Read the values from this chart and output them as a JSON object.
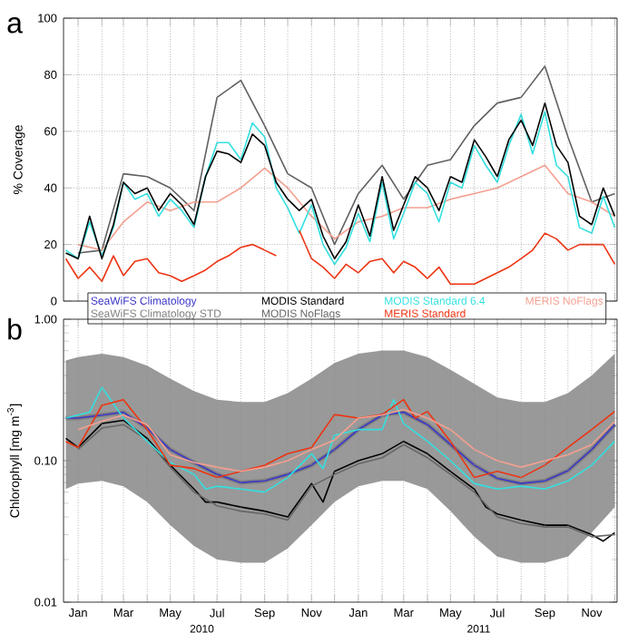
{
  "chart_data": [
    {
      "type": "line",
      "title": "a",
      "ylabel": "% Coverage",
      "xlim": [
        "2009-12-13",
        "2011-12-04"
      ],
      "ylim": [
        0,
        100
      ],
      "yticks": [
        0,
        20,
        40,
        60,
        80,
        100
      ],
      "grid": true,
      "tick_labels": "y",
      "xticks": [
        {
          "value": "2010-01-01",
          "label": null
        },
        {
          "value": "2010-02-01",
          "label": null
        },
        {
          "value": "2010-03-01",
          "label": null
        },
        {
          "value": "2010-04-01",
          "label": null
        },
        {
          "value": "2010-05-01",
          "label": null
        },
        {
          "value": "2010-06-01",
          "label": null
        },
        {
          "value": "2010-07-01",
          "label": null
        },
        {
          "value": "2010-08-01",
          "label": null
        },
        {
          "value": "2010-09-01",
          "label": null
        },
        {
          "value": "2010-10-01",
          "label": null
        },
        {
          "value": "2010-11-01",
          "label": null
        },
        {
          "value": "2010-12-01",
          "label": null
        },
        {
          "value": "2011-01-01",
          "label": null
        },
        {
          "value": "2011-02-01",
          "label": null
        },
        {
          "value": "2011-03-01",
          "label": null
        },
        {
          "value": "2011-04-01",
          "label": null
        },
        {
          "value": "2011-05-01",
          "label": null
        },
        {
          "value": "2011-06-01",
          "label": null
        },
        {
          "value": "2011-07-01",
          "label": null
        },
        {
          "value": "2011-08-01",
          "label": null
        },
        {
          "value": "2011-09-01",
          "label": null
        },
        {
          "value": "2011-10-01",
          "label": null
        },
        {
          "value": "2011-11-01",
          "label": null
        },
        {
          "value": "2011-12-01",
          "label": null
        }
      ],
      "series": [
        {
          "color": "#606060",
          "x": [
            "2010-01-01",
            "2010-02-01",
            "2010-03-01",
            "2010-04-01",
            "2010-05-01",
            "2010-06-01",
            "2010-07-01",
            "2010-08-01",
            "2010-09-01",
            "2010-10-01",
            "2010-11-01",
            "2010-12-01",
            "2011-01-01",
            "2011-02-01",
            "2011-03-01",
            "2011-04-01",
            "2011-05-01",
            "2011-06-01",
            "2011-07-01",
            "2011-08-01",
            "2011-09-01",
            "2011-10-01",
            "2011-11-01",
            "2011-12-01"
          ],
          "values": [
            17,
            18,
            45,
            44,
            40,
            32,
            72,
            78,
            62,
            45,
            40,
            20,
            38,
            48,
            36,
            48,
            50,
            62,
            70,
            72,
            83,
            58,
            35,
            38
          ]
        },
        {
          "color": "#f4a090",
          "x": [
            "2010-01-01",
            "2010-02-01",
            "2010-03-01",
            "2010-04-01",
            "2010-05-01",
            "2010-06-01",
            "2010-07-01",
            "2010-08-01",
            "2010-09-01",
            "2010-10-01",
            "2010-11-01",
            "2010-12-01",
            "2011-01-01",
            "2011-02-01",
            "2011-03-01",
            "2011-04-01",
            "2011-05-01",
            "2011-06-01",
            "2011-07-01",
            "2011-08-01",
            "2011-09-01",
            "2011-10-01",
            "2011-11-01",
            "2011-12-01"
          ],
          "values": [
            20,
            18,
            28,
            35,
            32,
            35,
            35,
            40,
            47,
            40,
            30,
            22,
            28,
            30,
            33,
            33,
            36,
            38,
            40,
            44,
            48,
            38,
            35,
            30
          ]
        },
        {
          "color": "#33e0e0",
          "x": [
            "2009-12-16",
            "2010-01-01",
            "2010-01-16",
            "2010-02-01",
            "2010-02-16",
            "2010-03-01",
            "2010-03-16",
            "2010-04-01",
            "2010-04-16",
            "2010-05-01",
            "2010-05-16",
            "2010-06-01",
            "2010-06-16",
            "2010-07-01",
            "2010-07-16",
            "2010-08-01",
            "2010-08-16",
            "2010-09-01",
            "2010-09-16",
            "2010-10-01",
            "2010-10-16",
            "2010-11-01",
            "2010-11-16",
            "2010-12-01",
            "2010-12-16",
            "2011-01-01",
            "2011-01-16",
            "2011-02-01",
            "2011-02-16",
            "2011-03-01",
            "2011-03-16",
            "2011-04-01",
            "2011-04-16",
            "2011-05-01",
            "2011-05-16",
            "2011-06-01",
            "2011-06-16",
            "2011-07-01",
            "2011-07-16",
            "2011-08-01",
            "2011-08-16",
            "2011-09-01",
            "2011-09-16",
            "2011-10-01",
            "2011-10-16",
            "2011-11-01",
            "2011-11-16",
            "2011-12-01"
          ],
          "values": [
            18,
            15,
            28,
            16,
            26,
            42,
            36,
            38,
            30,
            36,
            32,
            26,
            44,
            56,
            56,
            50,
            63,
            58,
            40,
            33,
            24,
            34,
            20,
            13,
            19,
            31,
            21,
            42,
            22,
            31,
            42,
            38,
            28,
            42,
            40,
            55,
            48,
            42,
            55,
            66,
            52,
            67,
            48,
            44,
            26,
            24,
            37,
            26
          ]
        },
        {
          "color": "#000000",
          "x": [
            "2009-12-16",
            "2010-01-01",
            "2010-01-16",
            "2010-02-01",
            "2010-02-16",
            "2010-03-01",
            "2010-03-16",
            "2010-04-01",
            "2010-04-16",
            "2010-05-01",
            "2010-05-16",
            "2010-06-01",
            "2010-06-16",
            "2010-07-01",
            "2010-07-16",
            "2010-08-01",
            "2010-08-16",
            "2010-09-01",
            "2010-09-16",
            "2010-10-01",
            "2010-10-16",
            "2010-11-01",
            "2010-11-16",
            "2010-12-01",
            "2010-12-16",
            "2011-01-01",
            "2011-01-16",
            "2011-02-01",
            "2011-02-16",
            "2011-03-01",
            "2011-03-16",
            "2011-04-01",
            "2011-04-16",
            "2011-05-01",
            "2011-05-16",
            "2011-06-01",
            "2011-06-16",
            "2011-07-01",
            "2011-07-16",
            "2011-08-01",
            "2011-08-16",
            "2011-09-01",
            "2011-09-16",
            "2011-10-01",
            "2011-10-16",
            "2011-11-01",
            "2011-11-16",
            "2011-12-01"
          ],
          "values": [
            17,
            15,
            30,
            15,
            27,
            42,
            38,
            40,
            32,
            38,
            34,
            27,
            44,
            53,
            52,
            49,
            59,
            55,
            42,
            36,
            32,
            36,
            23,
            15,
            21,
            34,
            23,
            44,
            25,
            34,
            44,
            40,
            32,
            44,
            42,
            57,
            51,
            44,
            57,
            64,
            55,
            70,
            55,
            49,
            30,
            27,
            40,
            30
          ]
        },
        {
          "color": "#ee3311",
          "x": [
            "2009-12-16",
            "2010-01-01",
            "2010-01-16",
            "2010-02-01",
            "2010-02-16",
            "2010-03-01",
            "2010-03-16",
            "2010-04-01",
            "2010-04-16",
            "2010-05-01",
            "2010-05-16",
            "2010-06-01",
            "2010-06-16",
            "2010-07-01",
            "2010-07-16",
            "2010-08-01",
            "2010-08-16",
            "2010-09-01",
            "2010-09-16",
            "2010-10-01",
            "2010-10-16",
            "2010-11-01",
            "2010-11-16",
            "2010-12-01",
            "2010-12-16",
            "2011-01-01",
            "2011-01-16",
            "2011-02-01",
            "2011-02-16",
            "2011-03-01",
            "2011-03-16",
            "2011-04-01",
            "2011-04-16",
            "2011-05-01",
            "2011-05-16",
            "2011-06-01",
            "2011-06-16",
            "2011-07-01",
            "2011-07-16",
            "2011-08-01",
            "2011-08-16",
            "2011-09-01",
            "2011-09-16",
            "2011-10-01",
            "2011-10-16",
            "2011-11-01",
            "2011-11-16",
            "2011-12-01"
          ],
          "values": [
            15,
            8,
            12,
            7,
            16,
            9,
            14,
            15,
            10,
            9,
            7,
            9,
            11,
            14,
            16,
            19,
            20,
            18,
            16,
            null,
            25,
            15,
            12,
            8,
            13,
            10,
            14,
            15,
            10,
            14,
            12,
            8,
            12,
            6,
            6,
            6,
            8,
            10,
            12,
            15,
            18,
            24,
            22,
            18,
            20,
            20,
            20,
            13
          ]
        }
      ]
    },
    {
      "type": "line",
      "title": "b",
      "ylabel": "Chlorophyll [mg m$^{-3}$]",
      "log": "y",
      "xlim": [
        "2009-12-13",
        "2011-12-04"
      ],
      "ylim": [
        0.01,
        1
      ],
      "yticks": [
        0.01,
        {
          "value": 0.1,
          "label": "0.10"
        },
        {
          "value": 1,
          "label": "1.00"
        }
      ],
      "grid": "x",
      "legend": "top",
      "xticks": [
        {
          "value": "2010-01-01",
          "label": "Jan"
        },
        {
          "value": "2010-02-01",
          "label": null
        },
        {
          "value": "2010-03-01",
          "label": "Mar"
        },
        {
          "value": "2010-04-01",
          "label": null
        },
        {
          "value": "2010-05-01",
          "label": "May"
        },
        {
          "value": "2010-06-01",
          "label": null
        },
        {
          "value": "2010-07-01",
          "label": "Jul"
        },
        {
          "value": "2010-08-01",
          "label": null
        },
        {
          "value": "2010-09-01",
          "label": "Sep"
        },
        {
          "value": "2010-10-01",
          "label": null
        },
        {
          "value": "2010-11-01",
          "label": "Nov"
        },
        {
          "value": "2010-12-01",
          "label": null
        },
        {
          "value": "2011-01-01",
          "label": "Jan"
        },
        {
          "value": "2011-02-01",
          "label": null
        },
        {
          "value": "2011-03-01",
          "label": "Mar"
        },
        {
          "value": "2011-04-01",
          "label": null
        },
        {
          "value": "2011-05-01",
          "label": "May"
        },
        {
          "value": "2011-06-01",
          "label": null
        },
        {
          "value": "2011-07-01",
          "label": "Jul"
        },
        {
          "value": "2011-08-01",
          "label": null
        },
        {
          "value": "2011-09-01",
          "label": "Sep"
        },
        {
          "value": "2011-10-01",
          "label": null
        },
        {
          "value": "2011-11-01",
          "label": "Nov"
        },
        {
          "value": "2011-12-01",
          "label": null
        }
      ],
      "annotations": [
        "2010",
        "2011"
      ],
      "series": [
        {
          "name": "SeaWiFS Climatology",
          "color": "#3a35c8",
          "x": [
            "2009-12-16",
            "2010-01-01",
            "2010-02-01",
            "2010-03-01",
            "2010-04-01",
            "2010-05-01",
            "2010-06-01",
            "2010-07-01",
            "2010-08-01",
            "2010-09-01",
            "2010-10-01",
            "2010-11-01",
            "2010-12-01",
            "2011-01-01",
            "2011-02-01",
            "2011-03-01",
            "2011-04-01",
            "2011-05-01",
            "2011-06-01",
            "2011-07-01",
            "2011-08-01",
            "2011-09-01",
            "2011-10-01",
            "2011-11-01",
            "2011-12-01"
          ],
          "values": [
            0.2,
            0.2,
            0.21,
            0.22,
            0.17,
            0.12,
            0.097,
            0.08,
            0.07,
            0.072,
            0.08,
            0.093,
            0.12,
            0.166,
            0.21,
            0.22,
            0.18,
            0.13,
            0.093,
            0.075,
            0.069,
            0.072,
            0.085,
            0.12,
            0.18
          ]
        },
        {
          "name": "SeaWiFS Climatology STD",
          "color": "#808080",
          "x": [
            "2009-12-16",
            "2010-01-01",
            "2010-02-01",
            "2010-03-01",
            "2010-04-01",
            "2010-05-01",
            "2010-06-01",
            "2010-07-01",
            "2010-08-01",
            "2010-09-01",
            "2010-10-01",
            "2010-11-01",
            "2010-12-01",
            "2011-01-01",
            "2011-02-01",
            "2011-03-01",
            "2011-04-01",
            "2011-05-01",
            "2011-06-01",
            "2011-07-01",
            "2011-08-01",
            "2011-09-01",
            "2011-10-01",
            "2011-11-01",
            "2011-12-01"
          ],
          "values": [
            0.2,
            0.2,
            0.21,
            0.22,
            0.17,
            0.12,
            0.097,
            0.08,
            0.07,
            0.072,
            0.08,
            0.093,
            0.12,
            0.166,
            0.21,
            0.22,
            0.18,
            0.13,
            0.093,
            0.075,
            0.069,
            0.072,
            0.085,
            0.12,
            0.18
          ],
          "lower": [
            0.063,
            0.069,
            0.072,
            0.066,
            0.051,
            0.035,
            0.025,
            0.02,
            0.019,
            0.019,
            0.024,
            0.035,
            0.051,
            0.066,
            0.072,
            0.072,
            0.063,
            0.044,
            0.029,
            0.021,
            0.019,
            0.019,
            0.021,
            0.031,
            0.047
          ],
          "upper": [
            0.51,
            0.54,
            0.57,
            0.54,
            0.47,
            0.38,
            0.31,
            0.27,
            0.26,
            0.26,
            0.3,
            0.38,
            0.49,
            0.57,
            0.6,
            0.6,
            0.54,
            0.44,
            0.35,
            0.28,
            0.26,
            0.26,
            0.3,
            0.4,
            0.57
          ]
        },
        {
          "name": "MODIS Standard",
          "color": "#000000",
          "x": [
            "2009-12-16",
            "2010-01-01",
            "2010-02-01",
            "2010-03-01",
            "2010-04-01",
            "2010-05-01",
            "2010-06-01",
            "2010-06-16",
            "2010-07-01",
            "2010-08-01",
            "2010-09-01",
            "2010-10-01",
            "2010-11-01",
            "2010-11-16",
            "2010-12-01",
            "2011-01-01",
            "2011-02-01",
            "2011-03-01",
            "2011-04-01",
            "2011-05-01",
            "2011-06-01",
            "2011-06-16",
            "2011-07-01",
            "2011-08-01",
            "2011-09-01",
            "2011-10-01",
            "2011-11-01",
            "2011-11-16",
            "2011-12-01"
          ],
          "values": [
            0.144,
            0.124,
            0.183,
            0.193,
            0.144,
            0.093,
            0.063,
            0.051,
            0.051,
            0.047,
            0.044,
            0.04,
            0.069,
            0.051,
            0.084,
            0.1,
            0.112,
            0.137,
            0.112,
            0.084,
            0.063,
            0.047,
            0.042,
            0.038,
            0.035,
            0.035,
            0.03,
            0.027,
            0.031
          ]
        },
        {
          "name": "MODIS NoFlags",
          "color": "#666666",
          "x": [
            "2010-01-01",
            "2010-02-01",
            "2010-03-01",
            "2010-04-01",
            "2010-05-01",
            "2010-06-01",
            "2010-07-01",
            "2010-08-01",
            "2010-09-01",
            "2010-10-01",
            "2010-11-01",
            "2010-12-01",
            "2011-01-01",
            "2011-02-01",
            "2011-03-01",
            "2011-04-01",
            "2011-05-01",
            "2011-06-01",
            "2011-07-01",
            "2011-08-01",
            "2011-09-01",
            "2011-10-01",
            "2011-11-01",
            "2011-12-01"
          ],
          "values": [
            0.12,
            0.17,
            0.18,
            0.14,
            0.09,
            0.06,
            0.048,
            0.044,
            0.042,
            0.038,
            0.066,
            0.08,
            0.095,
            0.105,
            0.13,
            0.105,
            0.08,
            0.06,
            0.04,
            0.036,
            0.034,
            0.034,
            0.029,
            0.03
          ]
        },
        {
          "name": "MODIS Standard 6.4",
          "color": "#33e0e0",
          "x": [
            "2009-12-16",
            "2010-01-16",
            "2010-02-01",
            "2010-03-01",
            "2010-04-01",
            "2010-05-01",
            "2010-06-01",
            "2010-06-16",
            "2010-07-01",
            "2010-08-01",
            "2010-09-01",
            "2010-10-01",
            "2010-11-01",
            "2010-11-16",
            "2010-12-01",
            "2011-01-01",
            "2011-02-01",
            "2011-02-16",
            "2011-03-01",
            "2011-04-01",
            "2011-05-01",
            "2011-06-01",
            "2011-07-01",
            "2011-08-01",
            "2011-09-01",
            "2011-10-01",
            "2011-11-01",
            "2011-12-01"
          ],
          "values": [
            0.2,
            0.22,
            0.33,
            0.2,
            0.137,
            0.097,
            0.08,
            0.063,
            0.066,
            0.063,
            0.06,
            0.076,
            0.112,
            0.088,
            0.151,
            0.166,
            0.166,
            0.27,
            0.183,
            0.137,
            0.1,
            0.069,
            0.063,
            0.066,
            0.063,
            0.072,
            0.093,
            0.137
          ]
        },
        {
          "name": "MERIS Standard",
          "color": "#ee3311",
          "x": [
            "2009-12-16",
            "2010-01-01",
            "2010-02-01",
            "2010-03-01",
            "2010-04-01",
            "2010-05-01",
            "2010-06-01",
            "2010-07-01",
            "2010-08-01",
            "2010-09-01",
            "2010-10-01",
            "2010-11-01",
            "2010-12-01",
            "2011-01-01",
            "2011-02-01",
            "2011-03-01",
            "2011-03-16",
            "2011-04-01",
            "2011-05-01",
            "2011-06-01",
            "2011-07-01",
            "2011-08-01",
            "2011-09-01",
            "2011-10-01",
            "2011-11-01",
            "2011-12-01"
          ],
          "values": [
            0.137,
            0.124,
            0.246,
            0.27,
            0.166,
            0.093,
            0.088,
            0.076,
            0.084,
            0.093,
            0.112,
            0.124,
            0.212,
            0.2,
            0.212,
            0.27,
            0.2,
            0.223,
            0.137,
            0.076,
            0.084,
            0.076,
            0.093,
            0.124,
            0.166,
            0.223
          ]
        },
        {
          "name": "MERIS NoFlags",
          "color": "#f4a090",
          "x": [
            "2010-01-01",
            "2010-02-01",
            "2010-03-01",
            "2010-04-01",
            "2010-05-01",
            "2010-06-01",
            "2010-07-01",
            "2010-08-01",
            "2010-09-01",
            "2010-10-01",
            "2010-11-01",
            "2010-12-01",
            "2011-01-01",
            "2011-02-01",
            "2011-03-01",
            "2011-04-01",
            "2011-05-01",
            "2011-06-01",
            "2011-07-01",
            "2011-08-01",
            "2011-09-01",
            "2011-10-01",
            "2011-11-01",
            "2011-12-01"
          ],
          "values": [
            0.166,
            0.19,
            0.21,
            0.18,
            0.11,
            0.097,
            0.09,
            0.084,
            0.09,
            0.1,
            0.12,
            0.14,
            0.2,
            0.21,
            0.23,
            0.2,
            0.166,
            0.12,
            0.1,
            0.09,
            0.1,
            0.11,
            0.13,
            0.19
          ]
        }
      ]
    }
  ]
}
